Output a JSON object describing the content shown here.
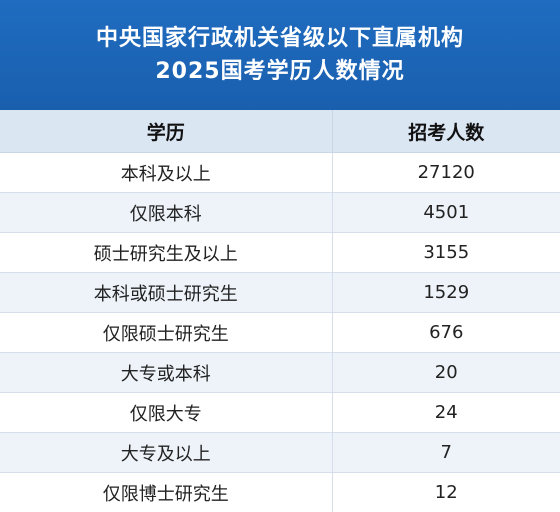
{
  "title": {
    "line1": "中央国家行政机关省级以下直属机构",
    "line2": "2025国考学历人数情况"
  },
  "colors": {
    "header_bg": "#1f6cc0",
    "col_header_bg": "#dbe6f3",
    "row_alt_bg": "#eef3f9"
  },
  "chart_data": {
    "type": "table",
    "columns": [
      "学历",
      "招考人数"
    ],
    "rows": [
      [
        "本科及以上",
        "27120"
      ],
      [
        "仅限本科",
        "4501"
      ],
      [
        "硕士研究生及以上",
        "3155"
      ],
      [
        "本科或硕士研究生",
        "1529"
      ],
      [
        "仅限硕士研究生",
        "676"
      ],
      [
        "大专或本科",
        "20"
      ],
      [
        "仅限大专",
        "24"
      ],
      [
        "大专及以上",
        "7"
      ],
      [
        "仅限博士研究生",
        "12"
      ]
    ]
  }
}
